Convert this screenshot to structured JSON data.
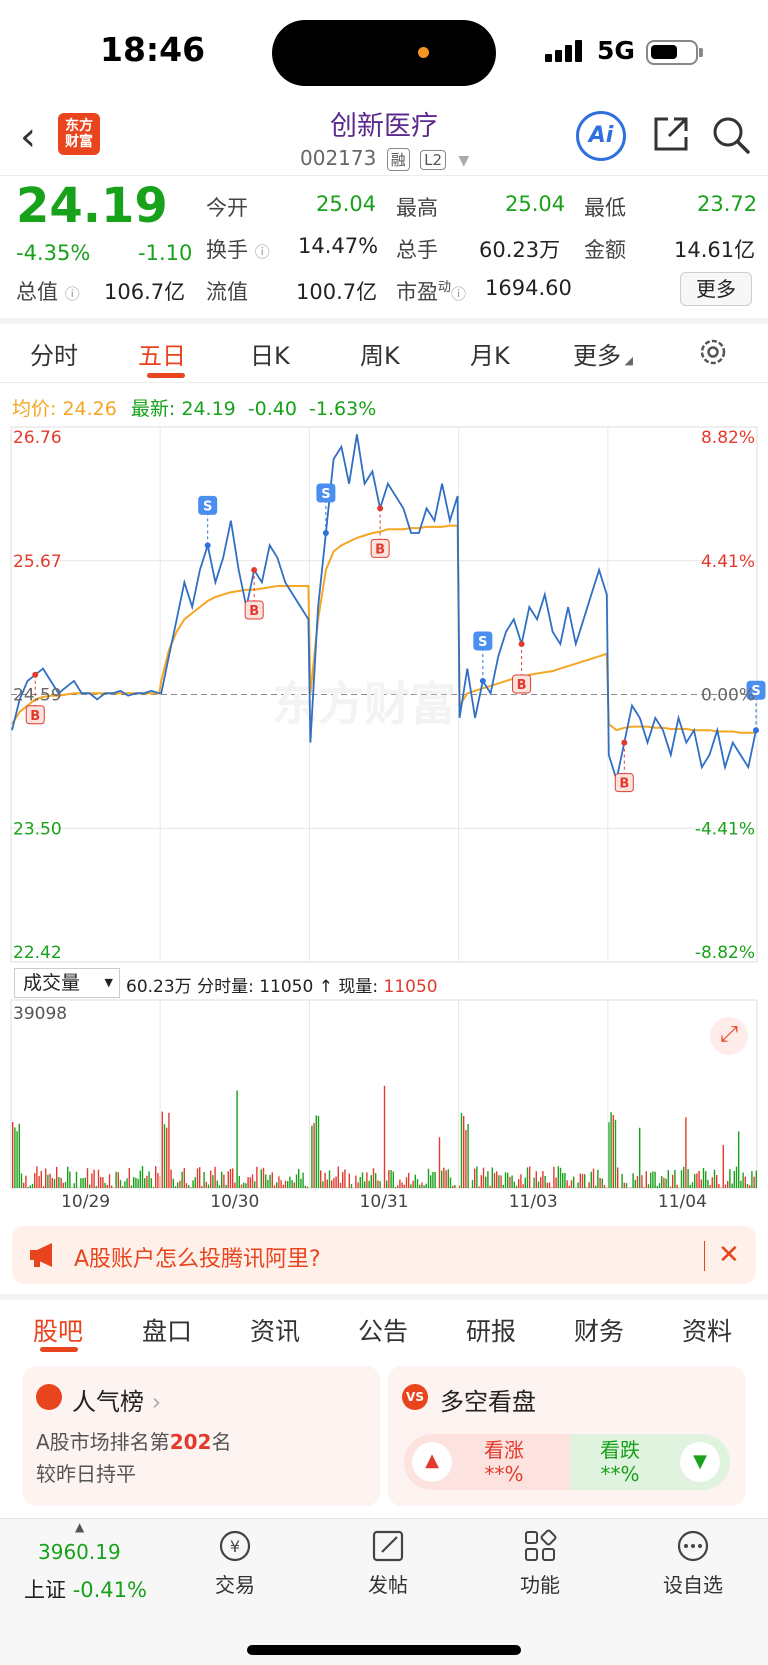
{
  "status_bar": {
    "time": "18:46",
    "network": "5G"
  },
  "header": {
    "brand_logo": "东方\n财富",
    "title": "创新医疗",
    "code": "002173",
    "badge_margin": "融",
    "badge_level": "L2",
    "ai_label": "Ai"
  },
  "quote": {
    "price": "24.19",
    "change_pct": "-4.35%",
    "change": "-1.10",
    "open_label": "今开",
    "open": "25.04",
    "high_label": "最高",
    "high": "25.04",
    "low_label": "最低",
    "low": "23.72",
    "turnover_label": "换手",
    "turnover": "14.47%",
    "volume_label": "总手",
    "volume": "60.23万",
    "amount_label": "金额",
    "amount": "14.61亿",
    "mktcap_label": "总值",
    "mktcap": "106.7亿",
    "float_label": "流值",
    "float": "100.7亿",
    "pe_label": "市盈",
    "pe_sup": "动",
    "pe": "1694.60",
    "more": "更多"
  },
  "chart_tabs": [
    "分时",
    "五日",
    "日K",
    "周K",
    "月K",
    "更多"
  ],
  "chart_info": {
    "avg_label": "均价:",
    "avg": "24.26",
    "latest_label": "最新:",
    "latest": "24.19",
    "latest_change": "-0.40",
    "latest_pct": "-1.63%"
  },
  "chart_data": {
    "type": "line",
    "y_left_ticks": [
      "26.76",
      "25.67",
      "24.59",
      "23.50",
      "22.42"
    ],
    "y_right_ticks": [
      "8.82%",
      "4.41%",
      "0.00%",
      "-4.41%",
      "-8.82%"
    ],
    "x_labels": [
      "10/29",
      "10/30",
      "10/31",
      "11/03",
      "11/04"
    ],
    "ylim": [
      22.42,
      26.76
    ],
    "price_series": [
      [
        24.3,
        24.55,
        24.7,
        24.75,
        24.8,
        24.7,
        24.6,
        24.65,
        24.7,
        24.6,
        24.6,
        24.55,
        24.6,
        24.6,
        24.62,
        24.58,
        24.6,
        24.6,
        24.62,
        24.6
      ],
      [
        24.6,
        24.9,
        25.2,
        25.5,
        25.3,
        25.6,
        25.8,
        25.5,
        25.7,
        26.0,
        25.6,
        25.3,
        25.6,
        25.5,
        25.8,
        25.7,
        25.5,
        25.4,
        25.3,
        25.2
      ],
      [
        24.2,
        25.3,
        25.9,
        26.5,
        26.6,
        26.3,
        26.7,
        26.3,
        26.4,
        26.1,
        26.3,
        26.2,
        26.1,
        25.9,
        25.9,
        26.1,
        26.0,
        26.3,
        26.0,
        26.2
      ],
      [
        24.4,
        24.8,
        24.4,
        24.7,
        24.6,
        24.9,
        25.1,
        25.2,
        25.0,
        25.3,
        25.2,
        25.4,
        25.1,
        25.0,
        25.3,
        25.0,
        25.2,
        25.4,
        25.6,
        25.4
      ],
      [
        24.1,
        23.9,
        24.2,
        24.5,
        24.4,
        24.2,
        24.4,
        24.3,
        24.1,
        24.4,
        24.2,
        24.3,
        24.0,
        24.1,
        24.3,
        24.0,
        24.2,
        24.1,
        24.0,
        24.3
      ]
    ],
    "avg_series": [
      [
        24.35,
        24.45,
        24.5,
        24.55,
        24.57,
        24.58,
        24.58,
        24.59,
        24.6,
        24.6,
        24.6,
        24.6,
        24.6,
        24.6,
        24.6,
        24.6,
        24.6,
        24.6,
        24.6,
        24.6
      ],
      [
        24.7,
        24.95,
        25.1,
        25.2,
        25.25,
        25.3,
        25.35,
        25.38,
        25.4,
        25.42,
        25.43,
        25.44,
        25.44,
        25.45,
        25.46,
        25.47,
        25.47,
        25.47,
        25.47,
        25.47
      ],
      [
        24.6,
        25.2,
        25.6,
        25.75,
        25.8,
        25.83,
        25.86,
        25.88,
        25.9,
        25.91,
        25.93,
        25.93,
        25.93,
        25.94,
        25.94,
        25.95,
        25.95,
        25.95,
        25.96,
        25.96
      ],
      [
        24.5,
        24.6,
        24.62,
        24.64,
        24.66,
        24.68,
        24.7,
        24.72,
        24.73,
        24.75,
        24.76,
        24.77,
        24.78,
        24.8,
        24.82,
        24.84,
        24.86,
        24.88,
        24.9,
        24.92
      ],
      [
        24.35,
        24.3,
        24.32,
        24.33,
        24.33,
        24.33,
        24.32,
        24.32,
        24.31,
        24.31,
        24.31,
        24.3,
        24.3,
        24.3,
        24.29,
        24.29,
        24.29,
        24.28,
        24.28,
        24.28
      ]
    ],
    "prev_close": 24.59,
    "grid": true
  },
  "volume": {
    "selector": "成交量",
    "total": "60.23万",
    "tick_label": "分时量:",
    "tick_value": "11050",
    "now_label": "现量:",
    "now_value": "11050",
    "max_label": "39098"
  },
  "banner": {
    "text": "A股账户怎么投腾讯阿里?"
  },
  "bottom_tabs": [
    "股吧",
    "盘口",
    "资讯",
    "公告",
    "研报",
    "财务",
    "资料"
  ],
  "cards": {
    "popular_title": "人气榜",
    "popular_line1_pre": "A股市场排名第",
    "popular_rank": "202",
    "popular_line1_post": "名",
    "popular_line2": "较昨日持平",
    "vs_title": "多空看盘",
    "bull_label": "看涨",
    "bull_value": "**%",
    "bear_label": "看跌",
    "bear_value": "**%"
  },
  "tabbar": {
    "index_value": "3960.19",
    "index_name": "上证",
    "index_change": "-0.41%",
    "items": [
      "交易",
      "发帖",
      "功能",
      "设自选"
    ]
  },
  "colors": {
    "up": "#e23b2e",
    "down": "#18a11a",
    "accent": "#e8441d",
    "line": "#2f6fc4",
    "avg": "#f5a623"
  }
}
